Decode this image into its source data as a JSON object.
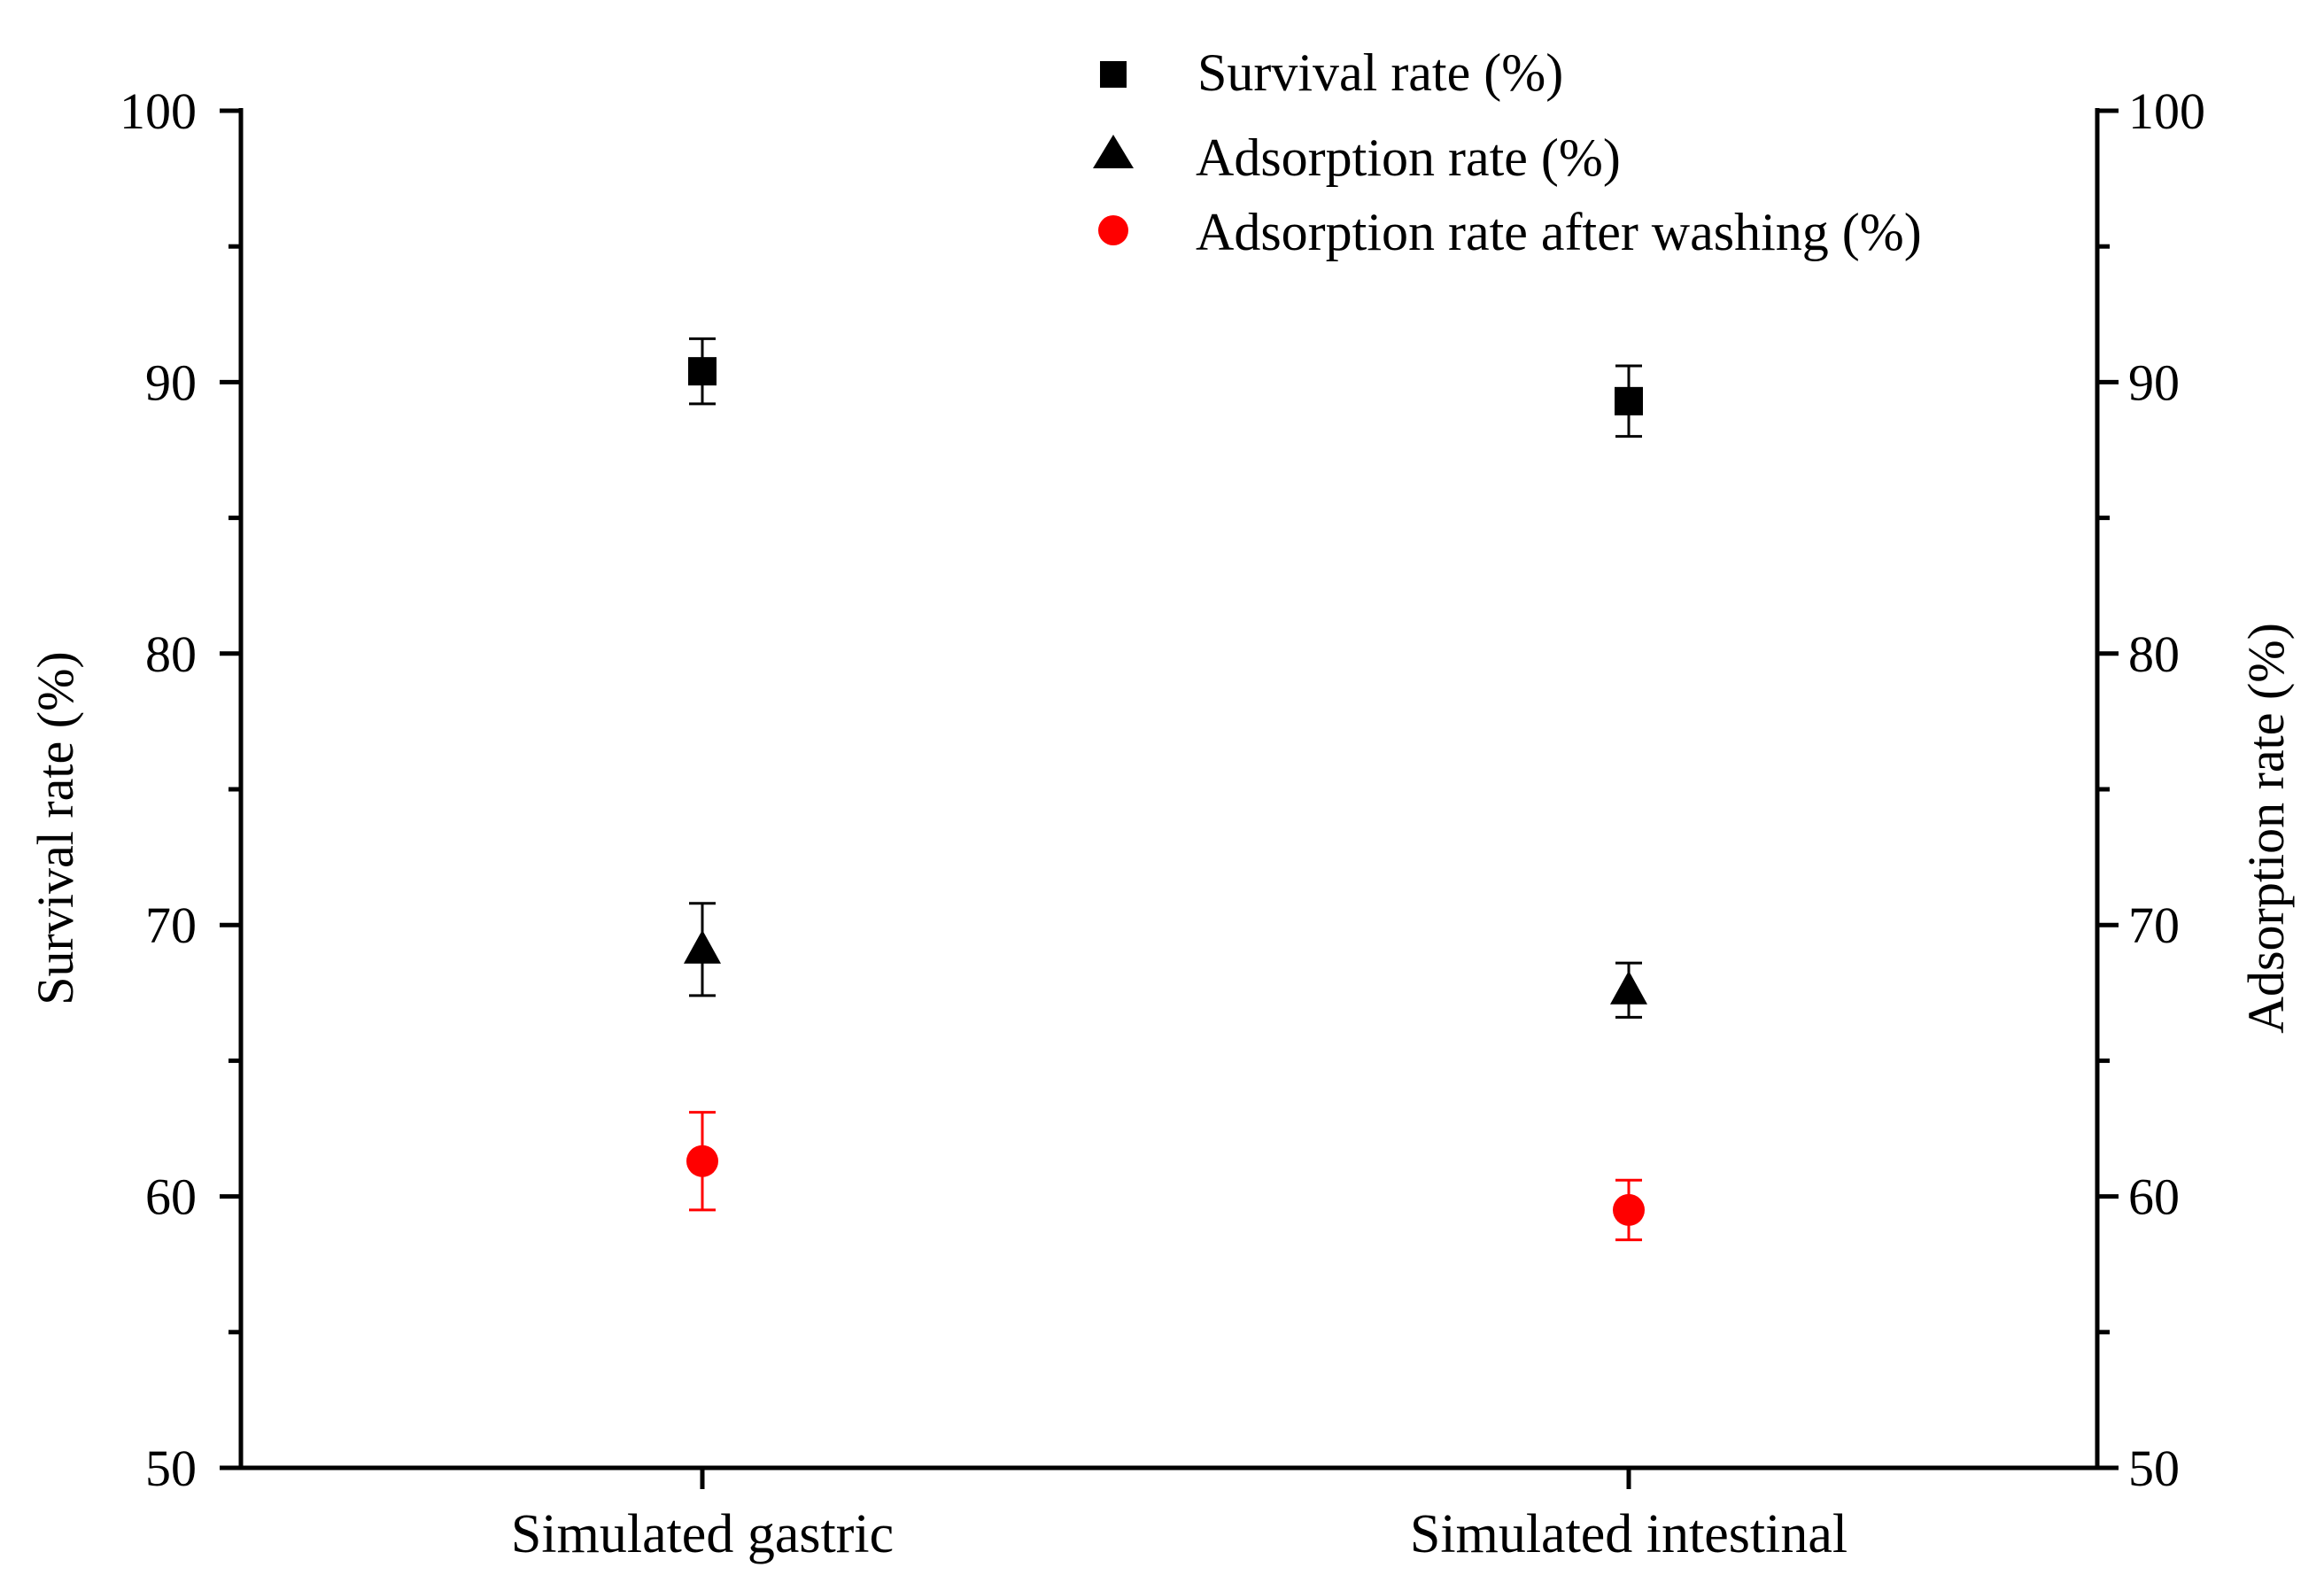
{
  "chart_data": {
    "type": "scatter",
    "categories": [
      "Simulated gastric",
      "Simulated intestinal"
    ],
    "ylabel_left": "Survival rate (%)",
    "ylabel_right": "Adsorption rate (%)",
    "ylim": [
      50,
      100
    ],
    "y_ticks": [
      50,
      60,
      70,
      80,
      90,
      100
    ],
    "y_tick_labels": [
      "50",
      "60",
      "70",
      "80",
      "90",
      "100"
    ],
    "legend_position": "top-center",
    "grid": false,
    "series": [
      {
        "name": "Survival rate (%)",
        "marker": "square",
        "color": "#000000",
        "values": [
          90.4,
          89.3
        ],
        "errors": [
          1.2,
          1.3
        ]
      },
      {
        "name": "Adsorption rate (%)",
        "marker": "triangle",
        "color": "#000000",
        "values": [
          69.1,
          67.6
        ],
        "errors": [
          1.7,
          1.0
        ]
      },
      {
        "name": "Adsorption rate after washing (%)",
        "marker": "circle",
        "color": "#ff0000",
        "values": [
          61.3,
          59.5
        ],
        "errors": [
          1.8,
          1.1
        ]
      }
    ]
  }
}
